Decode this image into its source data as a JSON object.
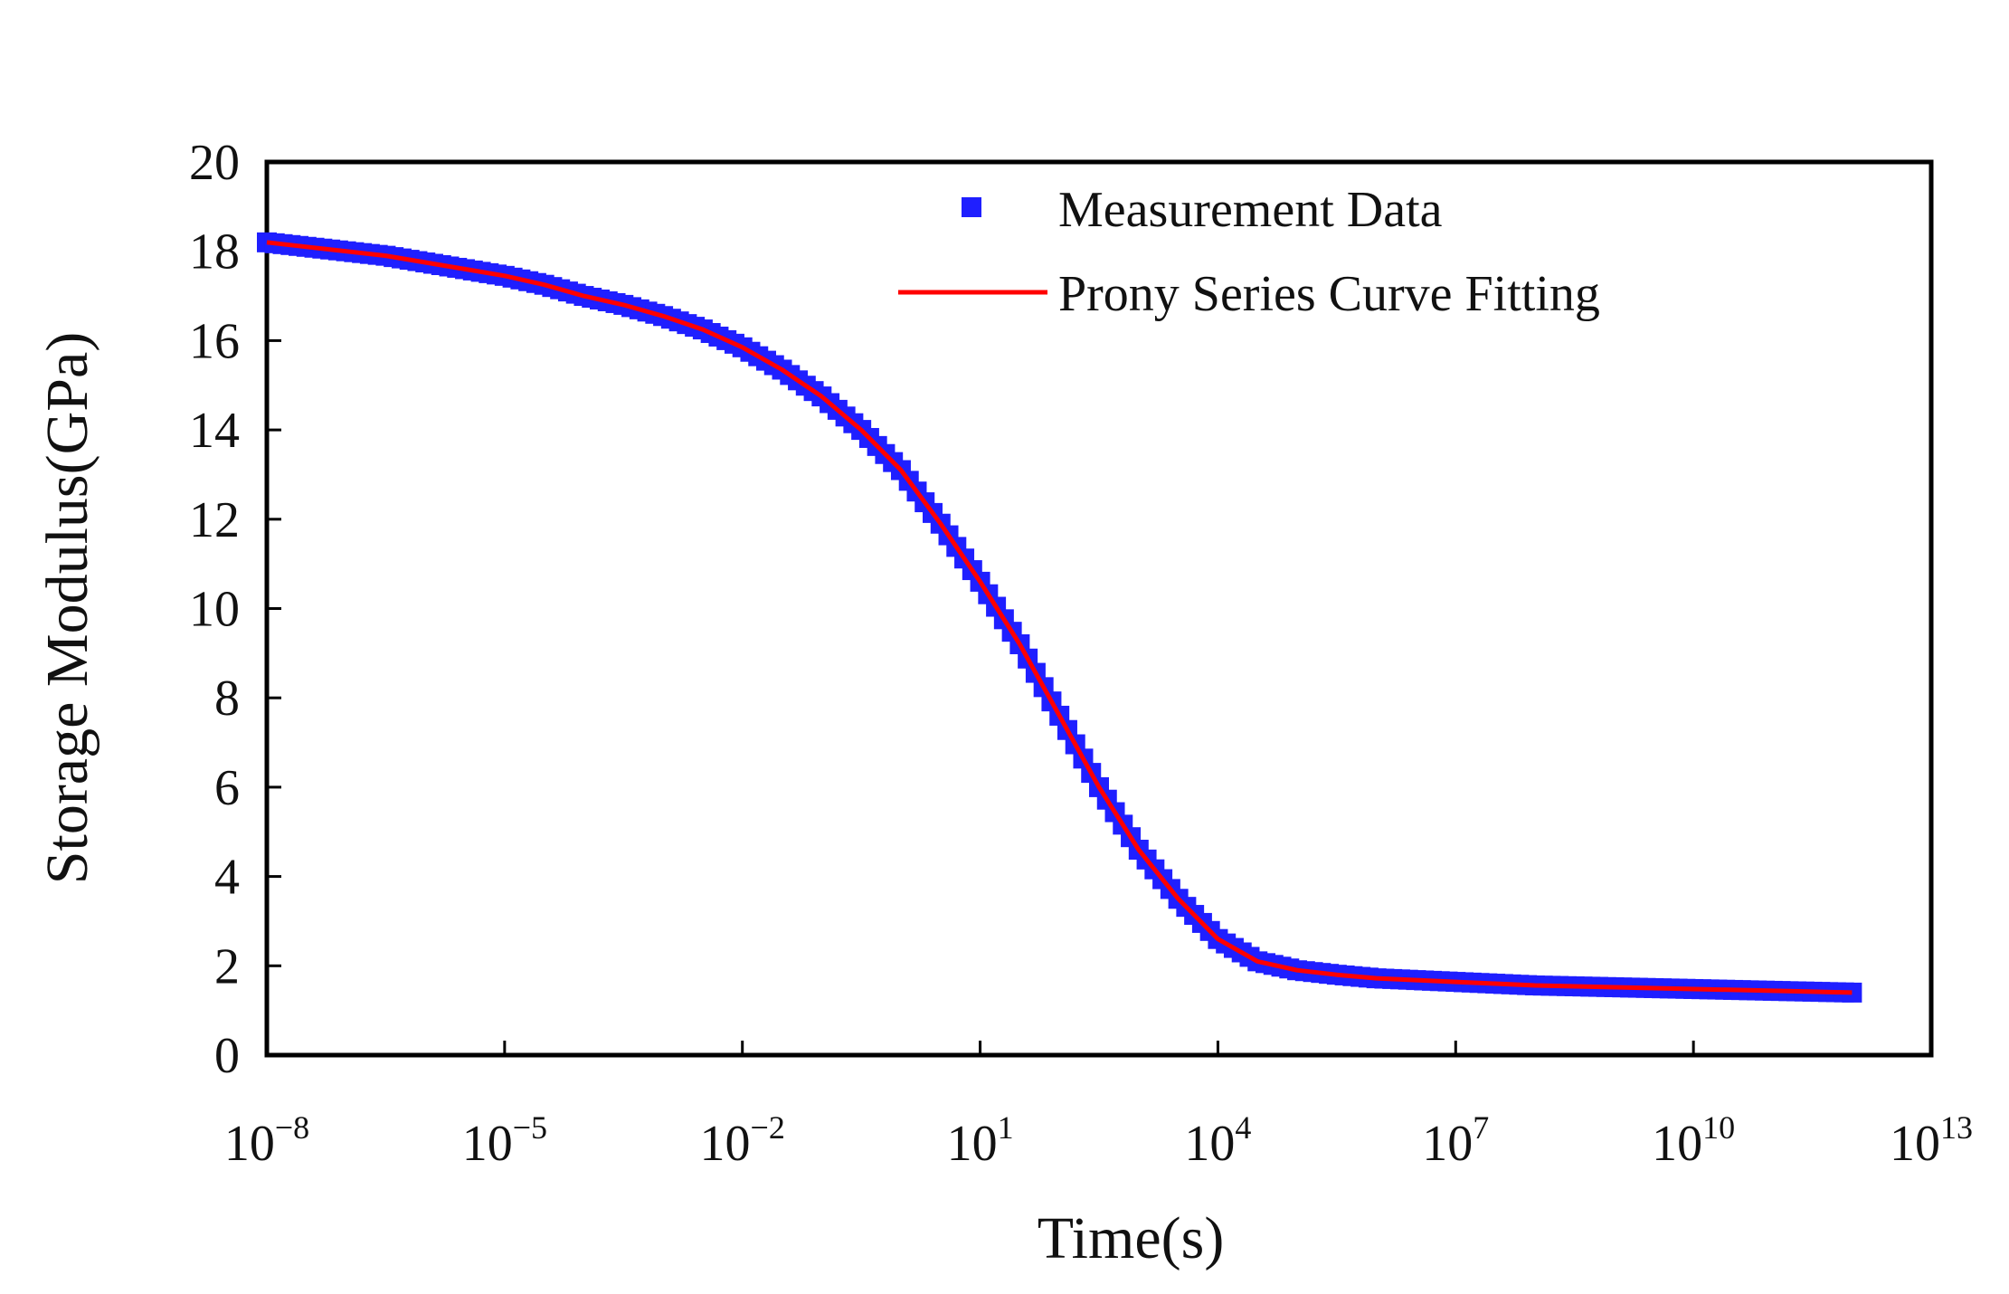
{
  "chart_data": {
    "type": "scatter",
    "title": "",
    "xlabel": "Time(s)",
    "ylabel": "Storage Modulus(GPa)",
    "xscale": "log",
    "xlim": [
      1e-08,
      10000000000000.0
    ],
    "ylim": [
      0,
      20
    ],
    "grid": false,
    "legend_position": "top-right",
    "x_ticks": [
      {
        "base": "10",
        "exp": "−8",
        "value": 1e-08
      },
      {
        "base": "10",
        "exp": "−5",
        "value": 1e-05
      },
      {
        "base": "10",
        "exp": "−2",
        "value": 0.01
      },
      {
        "base": "10",
        "exp": "1",
        "value": 10.0
      },
      {
        "base": "10",
        "exp": "4",
        "value": 10000.0
      },
      {
        "base": "10",
        "exp": "7",
        "value": 10000000.0
      },
      {
        "base": "10",
        "exp": "10",
        "value": 10000000000.0
      },
      {
        "base": "10",
        "exp": "13",
        "value": 10000000000000.0
      }
    ],
    "y_ticks": [
      "0",
      "2",
      "4",
      "6",
      "8",
      "10",
      "12",
      "14",
      "16",
      "18",
      "20"
    ],
    "series": [
      {
        "name": "Measurement Data",
        "kind": "markers",
        "marker": "square",
        "color": "#1f1fff",
        "log10_x": [
          -8.0,
          -7.5,
          -7.0,
          -6.5,
          -6.0,
          -5.5,
          -5.0,
          -4.5,
          -4.0,
          -3.5,
          -3.0,
          -2.5,
          -2.0,
          -1.5,
          -1.0,
          -0.5,
          0.0,
          0.5,
          1.0,
          1.5,
          2.0,
          2.5,
          3.0,
          3.5,
          4.0,
          4.5,
          5.0,
          5.5,
          6.0,
          6.5,
          7.0,
          7.5,
          8.0,
          8.5,
          9.0,
          9.5,
          10.0,
          10.5,
          11.0,
          11.5,
          12.0
        ],
        "y": [
          18.2,
          18.1,
          18.0,
          17.9,
          17.75,
          17.6,
          17.45,
          17.25,
          17.0,
          16.8,
          16.55,
          16.25,
          15.85,
          15.35,
          14.75,
          14.0,
          13.1,
          11.9,
          10.6,
          9.2,
          7.6,
          6.0,
          4.6,
          3.5,
          2.6,
          2.1,
          1.9,
          1.8,
          1.72,
          1.68,
          1.64,
          1.6,
          1.56,
          1.54,
          1.52,
          1.5,
          1.48,
          1.46,
          1.44,
          1.42,
          1.4
        ]
      },
      {
        "name": "Prony Series Curve Fitting",
        "kind": "line",
        "color": "#ff0000",
        "log10_x": [
          -8.0,
          -7.5,
          -7.0,
          -6.5,
          -6.0,
          -5.5,
          -5.0,
          -4.5,
          -4.0,
          -3.5,
          -3.0,
          -2.5,
          -2.0,
          -1.5,
          -1.0,
          -0.5,
          0.0,
          0.5,
          1.0,
          1.5,
          2.0,
          2.5,
          3.0,
          3.5,
          4.0,
          4.5,
          5.0,
          5.5,
          6.0,
          6.5,
          7.0,
          7.5,
          8.0,
          8.5,
          9.0,
          9.5,
          10.0,
          10.5,
          11.0,
          11.5,
          12.0
        ],
        "y": [
          18.2,
          18.1,
          18.0,
          17.9,
          17.75,
          17.6,
          17.45,
          17.25,
          17.0,
          16.8,
          16.55,
          16.25,
          15.85,
          15.35,
          14.75,
          14.0,
          13.1,
          11.9,
          10.6,
          9.2,
          7.6,
          6.0,
          4.6,
          3.5,
          2.6,
          2.1,
          1.9,
          1.8,
          1.72,
          1.68,
          1.64,
          1.6,
          1.56,
          1.54,
          1.52,
          1.5,
          1.48,
          1.46,
          1.44,
          1.42,
          1.4
        ]
      }
    ]
  }
}
